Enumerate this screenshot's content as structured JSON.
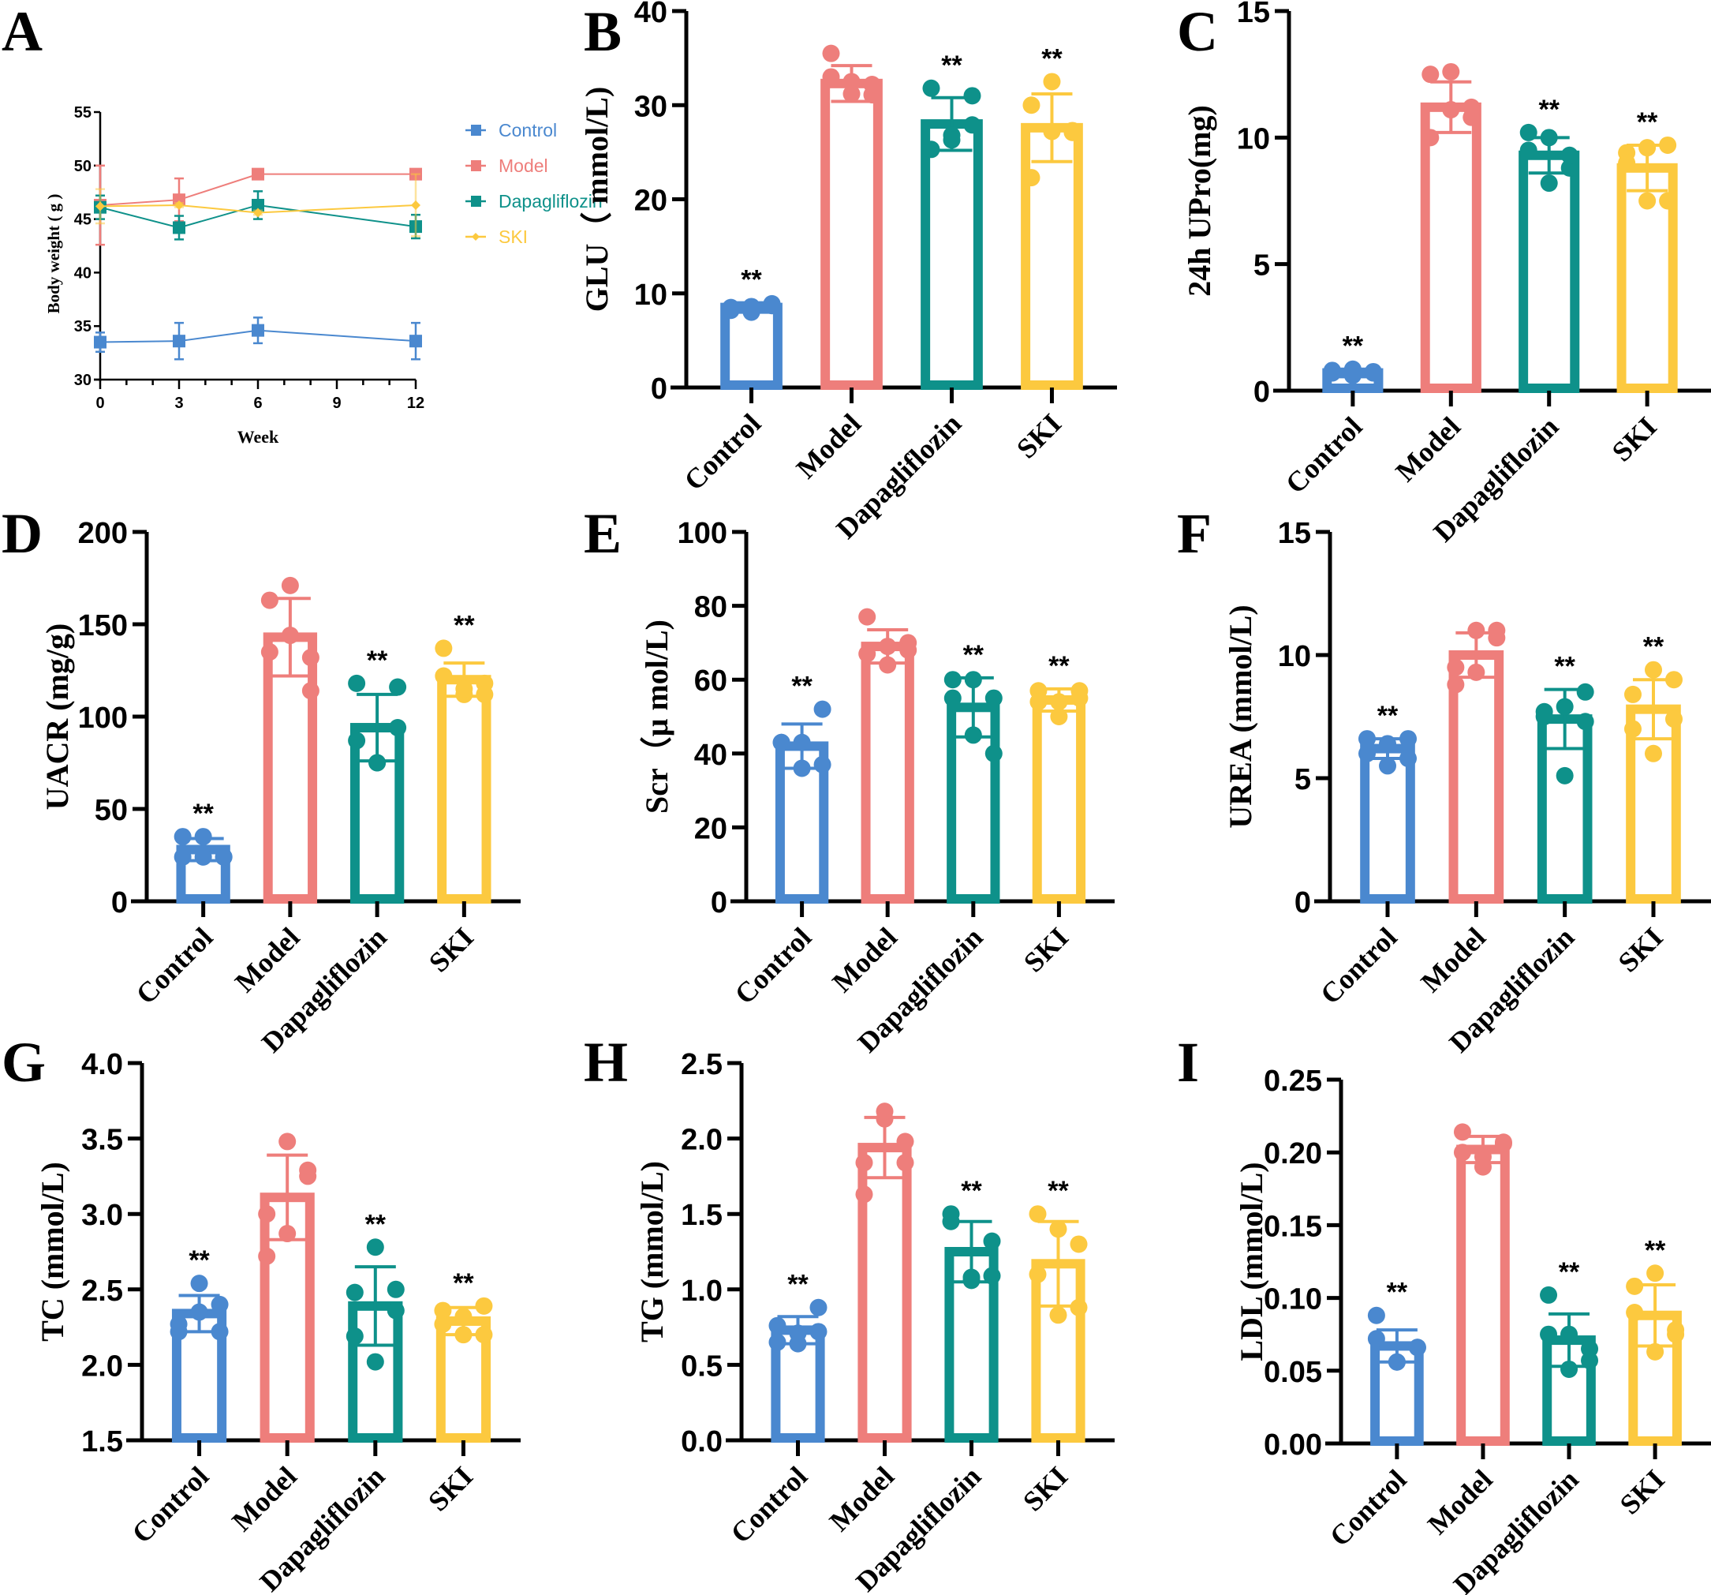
{
  "colors": {
    "Control": "#4a88cf",
    "Model": "#ee7e7b",
    "Dapagliflozin": "#0e918a",
    "SKI": "#fcc93f"
  },
  "significance_mark": "**",
  "chart_data": [
    {
      "panel": "A",
      "type": "line",
      "title": "",
      "xlabel": "Week",
      "ylabel": "Body weight ( g )",
      "x": [
        0,
        3,
        6,
        12
      ],
      "xticks": [
        "0",
        "3",
        "6",
        "9",
        "12"
      ],
      "xlim": [
        0,
        12
      ],
      "ylim": [
        30,
        55
      ],
      "yticks": [
        "30",
        "35",
        "40",
        "45",
        "50",
        "55"
      ],
      "legend_position": "right",
      "series": [
        {
          "name": "Control",
          "marker": "square",
          "values": [
            33.5,
            33.6,
            34.6,
            33.6
          ],
          "err": [
            0.9,
            1.7,
            1.2,
            1.7
          ]
        },
        {
          "name": "Model",
          "marker": "square",
          "values": [
            46.3,
            46.8,
            49.2,
            49.2
          ],
          "err": [
            3.7,
            2.0,
            0.4,
            0.4
          ]
        },
        {
          "name": "Dapagliflozin",
          "marker": "square",
          "values": [
            46.1,
            44.2,
            46.3,
            44.3
          ],
          "err": [
            1.1,
            1.1,
            1.3,
            1.1
          ]
        },
        {
          "name": "SKI",
          "marker": "diamond",
          "values": [
            46.2,
            46.3,
            45.6,
            46.3
          ],
          "err": [
            1.6,
            0.2,
            0.2,
            2.9
          ]
        }
      ]
    },
    {
      "panel": "B",
      "type": "bar",
      "ylabel": "GLU（ mmol/L)",
      "categories": [
        "Control",
        "Model",
        "Dapagliflozin",
        "SKI"
      ],
      "ylim": [
        0,
        40
      ],
      "yticks": [
        "0",
        "10",
        "20",
        "30",
        "40"
      ],
      "values": [
        8.5,
        32.3,
        28.0,
        27.6
      ],
      "err": [
        0.5,
        1.9,
        2.8,
        3.6
      ],
      "points": [
        [
          8.2,
          8.6,
          8.9,
          8.5,
          8.0,
          8.7
        ],
        [
          35.5,
          32.5,
          31.1,
          33.0,
          31.2,
          32.2
        ],
        [
          25.3,
          26.8,
          31.0,
          31.8,
          26.3,
          27.9
        ],
        [
          22.3,
          27.2,
          27.3,
          30.0,
          32.5,
          27.1
        ]
      ],
      "significance": [
        true,
        false,
        true,
        true
      ]
    },
    {
      "panel": "C",
      "type": "bar",
      "ylabel": "24h UPro(mg)",
      "categories": [
        "Control",
        "Model",
        "Dapagliflozin",
        "SKI"
      ],
      "ylim": [
        0,
        15
      ],
      "yticks": [
        "0",
        "5",
        "10",
        "15"
      ],
      "values": [
        0.7,
        11.2,
        9.3,
        8.8
      ],
      "err": [
        0.15,
        1.0,
        0.7,
        0.9
      ],
      "points": [
        [
          0.7,
          0.85,
          0.7,
          0.8,
          0.6,
          0.75
        ],
        [
          10.0,
          11.1,
          11.2,
          12.5,
          12.6,
          10.8
        ],
        [
          9.5,
          8.2,
          8.8,
          10.2,
          10.0,
          9.3
        ],
        [
          9.4,
          7.5,
          9.7,
          9.0,
          9.6,
          7.5
        ]
      ],
      "significance": [
        true,
        false,
        true,
        true
      ]
    },
    {
      "panel": "D",
      "type": "bar",
      "ylabel": "UACR (mg/g)",
      "categories": [
        "Control",
        "Model",
        "Dapagliflozin",
        "SKI"
      ],
      "ylim": [
        0,
        200
      ],
      "yticks": [
        "0",
        "50",
        "100",
        "150",
        "200"
      ],
      "values": [
        28,
        143,
        94,
        120
      ],
      "err": [
        6,
        21,
        18,
        9
      ],
      "points": [
        [
          35,
          24,
          24,
          24,
          35,
          24
        ],
        [
          135,
          171,
          114,
          163,
          144,
          132
        ],
        [
          118,
          75,
          116,
          87,
          75,
          94
        ],
        [
          122,
          112,
          118,
          137,
          115,
          112
        ]
      ],
      "significance": [
        true,
        false,
        true,
        true
      ]
    },
    {
      "panel": "E",
      "type": "bar",
      "ylabel": "Scr（μ mol/L)",
      "categories": [
        "Control",
        "Model",
        "Dapagliflozin",
        "SKI"
      ],
      "ylim": [
        0,
        100
      ],
      "yticks": [
        "0",
        "20",
        "40",
        "60",
        "80",
        "100"
      ],
      "values": [
        42,
        69,
        52.5,
        54.5
      ],
      "err": [
        6,
        4.5,
        8,
        3
      ],
      "points": [
        [
          43,
          36,
          52,
          43,
          43,
          37
        ],
        [
          67,
          64,
          70,
          77,
          69,
          68
        ],
        [
          60,
          45,
          40,
          55,
          60,
          55
        ],
        [
          57,
          50,
          57,
          54,
          54,
          55
        ]
      ],
      "significance": [
        true,
        false,
        true,
        true
      ]
    },
    {
      "panel": "F",
      "type": "bar",
      "ylabel": "UREA (mmol/L)",
      "categories": [
        "Control",
        "Model",
        "Dapagliflozin",
        "SKI"
      ],
      "ylim": [
        0,
        15
      ],
      "yticks": [
        "0",
        "5",
        "10",
        "15"
      ],
      "values": [
        6.2,
        10.0,
        7.4,
        7.8
      ],
      "err": [
        0.4,
        0.9,
        1.2,
        1.2
      ],
      "points": [
        [
          6.6,
          5.5,
          6.6,
          6.0,
          6.4,
          5.8
        ],
        [
          8.8,
          11.0,
          10.7,
          9.5,
          9.3,
          11.0
        ],
        [
          7.7,
          5.1,
          8.5,
          7.5,
          7.9,
          7.3
        ],
        [
          8.4,
          6.0,
          9.0,
          7.0,
          9.4,
          7.4
        ]
      ],
      "significance": [
        true,
        false,
        true,
        true
      ]
    },
    {
      "panel": "G",
      "type": "bar",
      "ylabel": "TC (mmol/L)",
      "categories": [
        "Control",
        "Model",
        "Dapagliflozin",
        "SKI"
      ],
      "ylim": [
        1.5,
        4.0
      ],
      "yticks": [
        "1.5",
        "2.0",
        "2.5",
        "3.0",
        "3.5",
        "4.0"
      ],
      "values": [
        2.34,
        3.11,
        2.39,
        2.29
      ],
      "err": [
        0.12,
        0.28,
        0.26,
        0.09
      ],
      "points": [
        [
          2.22,
          2.54,
          2.4,
          2.27,
          2.35,
          2.22
        ],
        [
          2.72,
          3.48,
          3.25,
          3.0,
          2.87,
          3.29
        ],
        [
          2.48,
          2.78,
          2.36,
          2.19,
          2.02,
          2.5
        ],
        [
          2.36,
          2.2,
          2.39,
          2.27,
          2.32,
          2.2
        ]
      ],
      "significance": [
        true,
        false,
        true,
        true
      ]
    },
    {
      "panel": "H",
      "type": "bar",
      "ylabel": "TG (mmol/L)",
      "categories": [
        "Control",
        "Model",
        "Dapagliflozin",
        "SKI"
      ],
      "ylim": [
        0,
        2.5
      ],
      "yticks": [
        "0.0",
        "0.5",
        "1.0",
        "1.5",
        "2.0",
        "2.5"
      ],
      "values": [
        0.73,
        1.94,
        1.25,
        1.17
      ],
      "err": [
        0.09,
        0.2,
        0.2,
        0.28
      ],
      "points": [
        [
          0.76,
          0.64,
          0.88,
          0.65,
          0.71,
          0.72
        ],
        [
          1.84,
          2.13,
          1.98,
          1.63,
          2.18,
          1.84
        ],
        [
          1.5,
          1.06,
          1.32,
          1.45,
          1.08,
          1.09
        ],
        [
          1.5,
          0.83,
          1.3,
          1.1,
          1.4,
          0.88
        ]
      ],
      "significance": [
        true,
        false,
        true,
        true
      ]
    },
    {
      "panel": "I",
      "type": "bar",
      "ylabel": "LDL (mmol/L)",
      "categories": [
        "Control",
        "Model",
        "Dapagliflozin",
        "SKI"
      ],
      "ylim": [
        0,
        0.25
      ],
      "yticks": [
        "0.00",
        "0.05",
        "0.10",
        "0.15",
        "0.20",
        "0.25"
      ],
      "values": [
        0.067,
        0.202,
        0.071,
        0.088
      ],
      "err": [
        0.011,
        0.009,
        0.018,
        0.021
      ],
      "points": [
        [
          0.072,
          0.056,
          0.066,
          0.088,
          0.056,
          0.066
        ],
        [
          0.2,
          0.19,
          0.206,
          0.214,
          0.197,
          0.207
        ],
        [
          0.075,
          0.051,
          0.065,
          0.102,
          0.075,
          0.057
        ],
        [
          0.09,
          0.063,
          0.075,
          0.108,
          0.117,
          0.078
        ]
      ],
      "significance": [
        true,
        false,
        true,
        true
      ]
    }
  ]
}
